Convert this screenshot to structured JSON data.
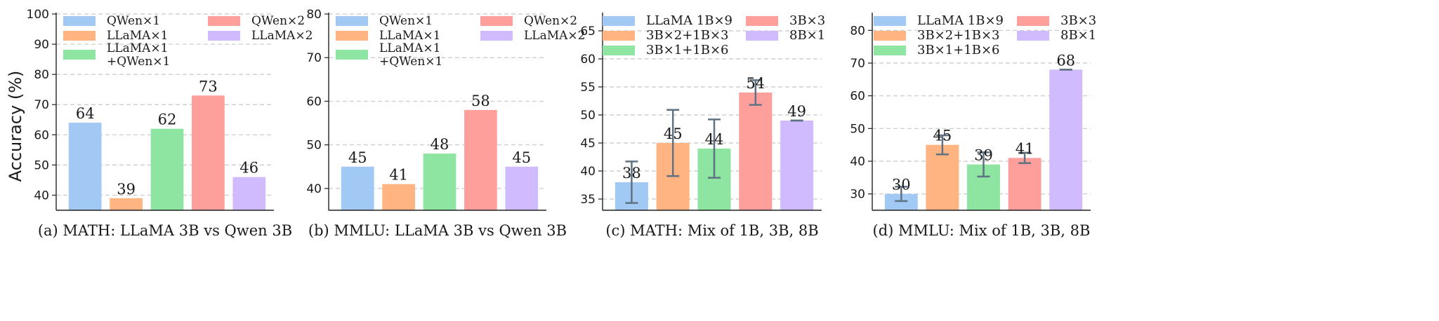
{
  "figure": {
    "ylabel": "Accuracy (%)"
  },
  "chart_data": [
    {
      "type": "bar",
      "caption": "(a) MATH: LLaMA 3B vs Qwen 3B",
      "ylabel": "Accuracy (%)",
      "ylim": [
        35,
        100
      ],
      "yticks": [
        40,
        50,
        60,
        70,
        80,
        90,
        100
      ],
      "grid": true,
      "legend_position": "top",
      "categories": [
        "QWen×1",
        "LLaMA×1",
        "LLaMA×1\n+QWen×1",
        "QWen×2",
        "LLaMA×2"
      ],
      "values": [
        64,
        39,
        62,
        73,
        46
      ],
      "colors": [
        "#a1c9f4",
        "#ffb482",
        "#8de5a1",
        "#ff9f9b",
        "#d0bbff"
      ],
      "errors": null
    },
    {
      "type": "bar",
      "caption": "(b) MMLU: LLaMA 3B vs Qwen 3B",
      "ylabel": "",
      "ylim": [
        35,
        80
      ],
      "yticks": [
        40,
        50,
        60,
        70,
        80
      ],
      "grid": true,
      "legend_position": "top",
      "categories": [
        "QWen×1",
        "LLaMA×1",
        "LLaMA×1\n+QWen×1",
        "QWen×2",
        "LLaMA×2"
      ],
      "values": [
        45,
        41,
        48,
        58,
        45
      ],
      "colors": [
        "#a1c9f4",
        "#ffb482",
        "#8de5a1",
        "#ff9f9b",
        "#d0bbff"
      ],
      "errors": null
    },
    {
      "type": "bar",
      "caption": "(c) MATH: Mix of 1B, 3B, 8B",
      "ylabel": "",
      "ylim": [
        33,
        68
      ],
      "yticks": [
        35,
        40,
        45,
        50,
        55,
        60,
        65
      ],
      "grid": true,
      "legend_position": "top",
      "categories": [
        "LLaMA 1B×9",
        "3B×2+1B×3",
        "3B×1+1B×6",
        "3B×3",
        "8B×1"
      ],
      "values": [
        38,
        45,
        44,
        54,
        49
      ],
      "colors": [
        "#a1c9f4",
        "#ffb482",
        "#8de5a1",
        "#ff9f9b",
        "#d0bbff"
      ],
      "errors": [
        3.7,
        5.9,
        5.2,
        2.2,
        0
      ]
    },
    {
      "type": "bar",
      "caption": "(d) MMLU: Mix of 1B, 3B, 8B",
      "ylabel": "",
      "ylim": [
        25,
        85
      ],
      "yticks": [
        30,
        40,
        50,
        60,
        70,
        80
      ],
      "grid": true,
      "legend_position": "top",
      "categories": [
        "LLaMA 1B×9",
        "3B×2+1B×3",
        "3B×1+1B×6",
        "3B×3",
        "8B×1"
      ],
      "values": [
        30,
        45,
        39,
        41,
        68
      ],
      "colors": [
        "#a1c9f4",
        "#ffb482",
        "#8de5a1",
        "#ff9f9b",
        "#d0bbff"
      ],
      "errors": [
        2.2,
        2.9,
        3.7,
        1.6,
        0
      ]
    }
  ]
}
